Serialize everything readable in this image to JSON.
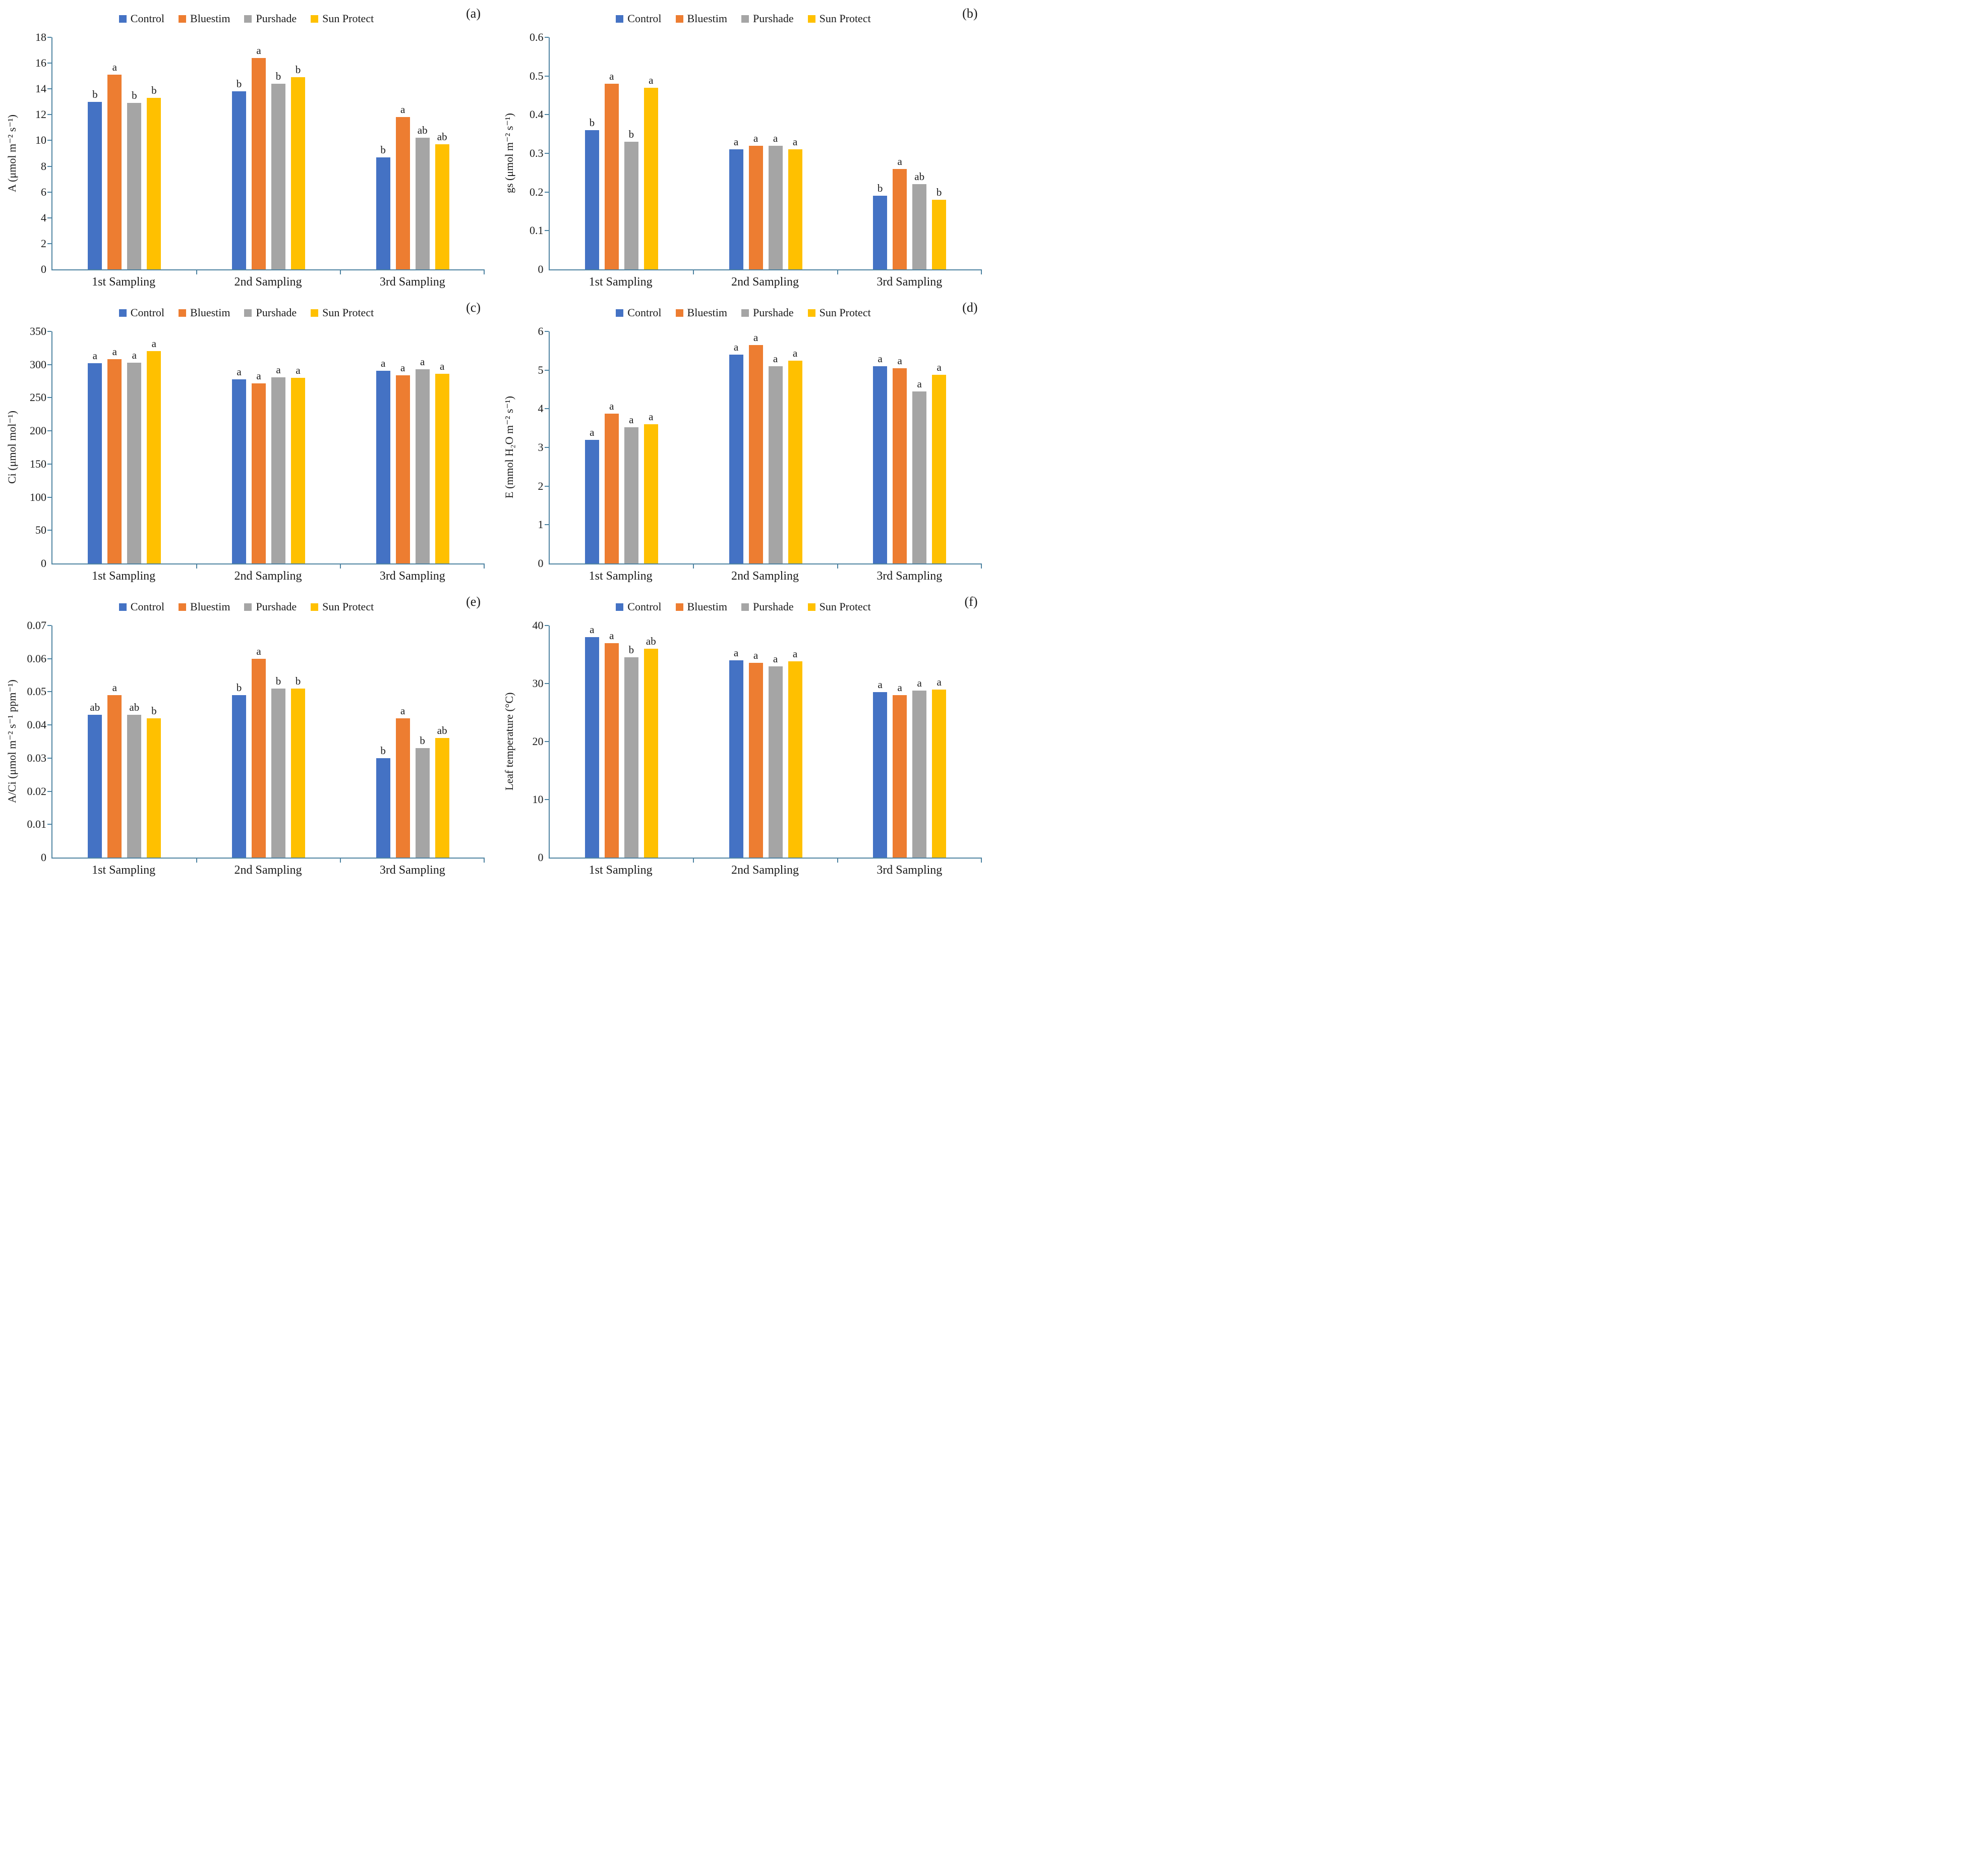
{
  "figure": {
    "background": "#ffffff",
    "axis_color": "#4f84a2",
    "text_color": "#1a1a1a"
  },
  "legend": {
    "items": [
      {
        "label": "Control",
        "color": "#4472C4"
      },
      {
        "label": "Bluestim",
        "color": "#ED7D31"
      },
      {
        "label": "Purshade",
        "color": "#A5A5A5"
      },
      {
        "label": "Sun Protect",
        "color": "#FFC000"
      }
    ]
  },
  "categories": [
    "1st Sampling",
    "2nd Sampling",
    "3rd Sampling"
  ],
  "chart_data": [
    {
      "type": "bar",
      "panel_label": "(a)",
      "ylabel": "A (μmol m⁻² s⁻¹)",
      "ylim": [
        0,
        18
      ],
      "yticks": [
        "0",
        "2",
        "4",
        "6",
        "8",
        "10",
        "12",
        "14",
        "16",
        "18"
      ],
      "legend_position": "top",
      "grid": false,
      "categories": [
        "1st Sampling",
        "2nd Sampling",
        "3rd Sampling"
      ],
      "series": [
        {
          "name": "Control",
          "color": "#4472C4",
          "values": [
            13.0,
            13.8,
            8.7
          ],
          "letters": [
            "b",
            "b",
            "b"
          ]
        },
        {
          "name": "Bluestim",
          "color": "#ED7D31",
          "values": [
            15.1,
            16.4,
            11.8
          ],
          "letters": [
            "a",
            "a",
            "a"
          ]
        },
        {
          "name": "Purshade",
          "color": "#A5A5A5",
          "values": [
            12.9,
            14.4,
            10.2
          ],
          "letters": [
            "b",
            "b",
            "ab"
          ]
        },
        {
          "name": "Sun Protect",
          "color": "#FFC000",
          "values": [
            13.3,
            14.9,
            9.7
          ],
          "letters": [
            "b",
            "b",
            "ab"
          ]
        }
      ]
    },
    {
      "type": "bar",
      "panel_label": "(b)",
      "ylabel": "gs (μmol m⁻² s⁻¹)",
      "ylim": [
        0,
        0.6
      ],
      "yticks": [
        "0",
        "0.1",
        "0.2",
        "0.3",
        "0.4",
        "0.5",
        "0.6"
      ],
      "legend_position": "top",
      "grid": false,
      "categories": [
        "1st Sampling",
        "2nd Sampling",
        "3rd Sampling"
      ],
      "series": [
        {
          "name": "Control",
          "color": "#4472C4",
          "values": [
            0.36,
            0.31,
            0.19
          ],
          "letters": [
            "b",
            "a",
            "b"
          ]
        },
        {
          "name": "Bluestim",
          "color": "#ED7D31",
          "values": [
            0.48,
            0.32,
            0.26
          ],
          "letters": [
            "a",
            "a",
            "a"
          ]
        },
        {
          "name": "Purshade",
          "color": "#A5A5A5",
          "values": [
            0.33,
            0.32,
            0.22
          ],
          "letters": [
            "b",
            "a",
            "ab"
          ]
        },
        {
          "name": "Sun Protect",
          "color": "#FFC000",
          "values": [
            0.47,
            0.31,
            0.18
          ],
          "letters": [
            "a",
            "a",
            "b"
          ]
        }
      ]
    },
    {
      "type": "bar",
      "panel_label": "(c)",
      "ylabel": "Ci (μmol mol⁻¹)",
      "ylim": [
        0,
        350
      ],
      "yticks": [
        "0",
        "50",
        "100",
        "150",
        "200",
        "250",
        "300",
        "350"
      ],
      "legend_position": "top",
      "grid": false,
      "categories": [
        "1st Sampling",
        "2nd Sampling",
        "3rd Sampling"
      ],
      "series": [
        {
          "name": "Control",
          "color": "#4472C4",
          "values": [
            302,
            278,
            291
          ],
          "letters": [
            "a",
            "a",
            "a"
          ]
        },
        {
          "name": "Bluestim",
          "color": "#ED7D31",
          "values": [
            308,
            272,
            284
          ],
          "letters": [
            "a",
            "a",
            "a"
          ]
        },
        {
          "name": "Purshade",
          "color": "#A5A5A5",
          "values": [
            303,
            281,
            293
          ],
          "letters": [
            "a",
            "a",
            "a"
          ]
        },
        {
          "name": "Sun Protect",
          "color": "#FFC000",
          "values": [
            320,
            280,
            286
          ],
          "letters": [
            "a",
            "a",
            "a"
          ]
        }
      ]
    },
    {
      "type": "bar",
      "panel_label": "(d)",
      "ylabel": "E (mmol H₂O m⁻² s⁻¹)",
      "ylim": [
        0,
        6
      ],
      "yticks": [
        "0",
        "1",
        "2",
        "3",
        "4",
        "5",
        "6"
      ],
      "legend_position": "top",
      "grid": false,
      "categories": [
        "1st Sampling",
        "2nd Sampling",
        "3rd Sampling"
      ],
      "series": [
        {
          "name": "Control",
          "color": "#4472C4",
          "values": [
            3.2,
            5.4,
            5.1
          ],
          "letters": [
            "a",
            "a",
            "a"
          ]
        },
        {
          "name": "Bluestim",
          "color": "#ED7D31",
          "values": [
            3.87,
            5.65,
            5.05
          ],
          "letters": [
            "a",
            "a",
            "a"
          ]
        },
        {
          "name": "Purshade",
          "color": "#A5A5A5",
          "values": [
            3.52,
            5.1,
            4.45
          ],
          "letters": [
            "a",
            "a",
            "a"
          ]
        },
        {
          "name": "Sun Protect",
          "color": "#FFC000",
          "values": [
            3.6,
            5.25,
            4.88
          ],
          "letters": [
            "a",
            "a",
            "a"
          ]
        }
      ]
    },
    {
      "type": "bar",
      "panel_label": "(e)",
      "ylabel": "A/Ci (μmol m⁻² s⁻¹ ppm⁻¹)",
      "ylim": [
        0,
        0.07
      ],
      "yticks": [
        "0",
        "0.01",
        "0.02",
        "0.03",
        "0.04",
        "0.05",
        "0.06",
        "0.07"
      ],
      "legend_position": "top",
      "grid": false,
      "categories": [
        "1st Sampling",
        "2nd Sampling",
        "3rd Sampling"
      ],
      "series": [
        {
          "name": "Control",
          "color": "#4472C4",
          "values": [
            0.043,
            0.049,
            0.03
          ],
          "letters": [
            "ab",
            "b",
            "b"
          ]
        },
        {
          "name": "Bluestim",
          "color": "#ED7D31",
          "values": [
            0.049,
            0.06,
            0.042
          ],
          "letters": [
            "a",
            "a",
            "a"
          ]
        },
        {
          "name": "Purshade",
          "color": "#A5A5A5",
          "values": [
            0.043,
            0.051,
            0.033
          ],
          "letters": [
            "ab",
            "b",
            "b"
          ]
        },
        {
          "name": "Sun Protect",
          "color": "#FFC000",
          "values": [
            0.042,
            0.051,
            0.036
          ],
          "letters": [
            "b",
            "b",
            "ab"
          ]
        }
      ]
    },
    {
      "type": "bar",
      "panel_label": "(f)",
      "ylabel": "Leaf temperature (°C)",
      "ylim": [
        0,
        40
      ],
      "yticks": [
        "0",
        "10",
        "20",
        "30",
        "40"
      ],
      "legend_position": "top",
      "grid": false,
      "categories": [
        "1st Sampling",
        "2nd Sampling",
        "3rd Sampling"
      ],
      "series": [
        {
          "name": "Control",
          "color": "#4472C4",
          "values": [
            38,
            34,
            28.5
          ],
          "letters": [
            "a",
            "a",
            "a"
          ]
        },
        {
          "name": "Bluestim",
          "color": "#ED7D31",
          "values": [
            37,
            33.6,
            28
          ],
          "letters": [
            "a",
            "a",
            "a"
          ]
        },
        {
          "name": "Purshade",
          "color": "#A5A5A5",
          "values": [
            34.5,
            33,
            28.8
          ],
          "letters": [
            "b",
            "a",
            "a"
          ]
        },
        {
          "name": "Sun Protect",
          "color": "#FFC000",
          "values": [
            36,
            33.8,
            29
          ],
          "letters": [
            "ab",
            "a",
            "a"
          ]
        }
      ]
    }
  ]
}
